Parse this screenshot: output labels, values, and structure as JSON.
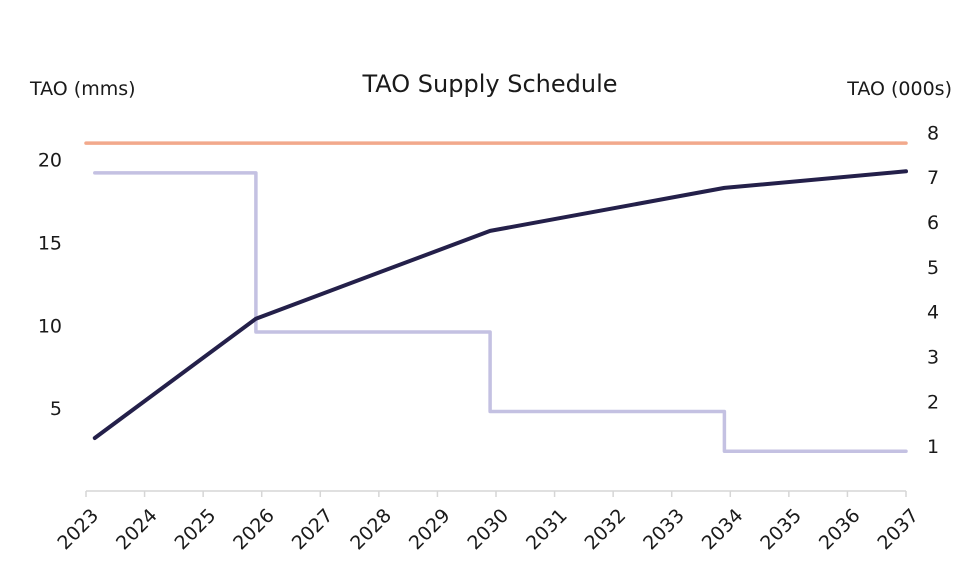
{
  "chart_data": {
    "type": "line",
    "title": "TAO Supply Schedule",
    "y_left_label": "TAO (mms)",
    "y_right_label": "TAO (000s)",
    "x_ticks": [
      "2023",
      "2024",
      "2025",
      "2026",
      "2027",
      "2028",
      "2029",
      "2030",
      "2031",
      "2032",
      "2033",
      "2034",
      "2035",
      "2036",
      "2037"
    ],
    "y_left_ticks": [
      "5",
      "10",
      "15",
      "20"
    ],
    "y_right_ticks": [
      "1",
      "2",
      "3",
      "4",
      "5",
      "6",
      "7",
      "8"
    ],
    "xlim": [
      2023,
      2037
    ],
    "ylim_left": [
      0,
      23
    ],
    "ylim_right": [
      0,
      8.5
    ],
    "grid": false,
    "series": [
      {
        "axis": "left",
        "color": "#f2a98c",
        "x": [
          2023,
          2037
        ],
        "y": [
          21,
          21
        ]
      },
      {
        "axis": "left",
        "color": "#c4c1e2",
        "step": true,
        "x": [
          2023.15,
          2025.9,
          2025.9,
          2029.9,
          2029.9,
          2033.9,
          2033.9,
          2037
        ],
        "y": [
          19.2,
          19.2,
          9.6,
          9.6,
          4.8,
          4.8,
          2.4,
          2.4
        ]
      },
      {
        "axis": "left",
        "color": "#24204a",
        "x": [
          2023.15,
          2025.9,
          2029.9,
          2033.9,
          2037
        ],
        "y": [
          3.2,
          10.4,
          15.7,
          18.3,
          19.3
        ]
      }
    ]
  }
}
